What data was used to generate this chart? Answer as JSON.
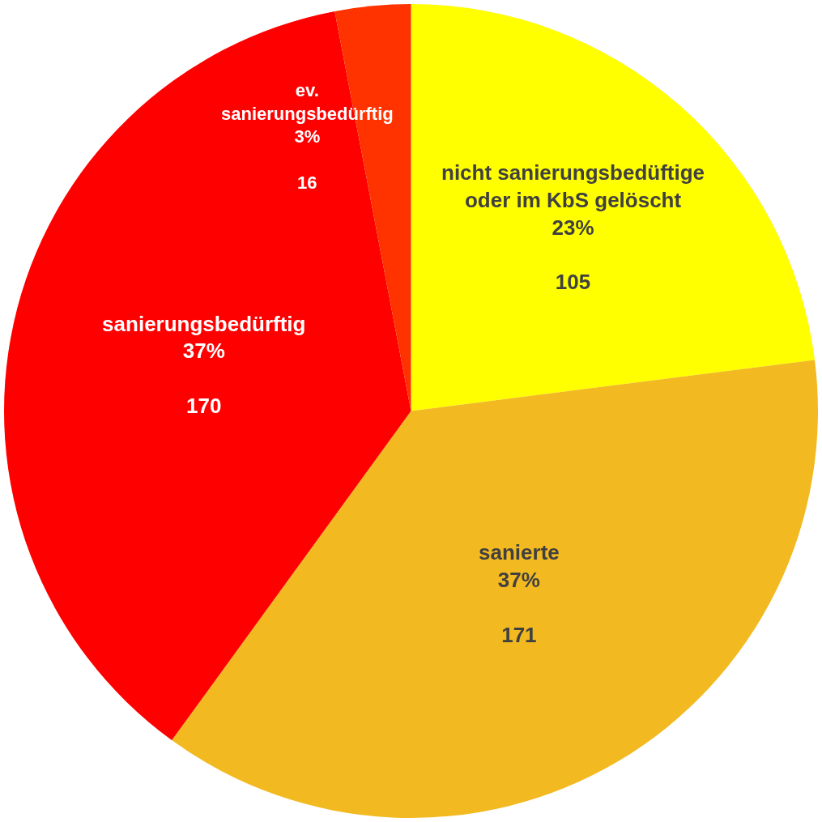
{
  "chart_data": {
    "type": "pie",
    "categories": [
      "nicht sanierungsbedüftige oder im KbS gelöscht",
      "sanierte",
      "sanierungsbedürftig",
      "ev. sanierungsbedürftig"
    ],
    "values": [
      23,
      37,
      37,
      3
    ],
    "colors": [
      "#ffff00",
      "#f2b920",
      "#ff0000",
      "#ff3300"
    ],
    "value_labels": [
      "23%\n\n105",
      "37%\n\n171",
      "37%\n\n170",
      "3%\n\n16"
    ],
    "legend": false
  }
}
